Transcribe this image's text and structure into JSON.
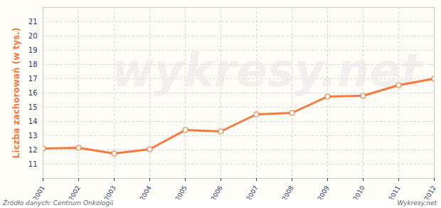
{
  "chart_data": {
    "type": "line",
    "y_label": "Liczba zachorowań (w tys.)",
    "source": "Źródło danych: Centrum Onkologii",
    "credit": "Wykresy.net",
    "watermark": "wykresy.net",
    "x": [
      2001,
      2002,
      2003,
      2004,
      2005,
      2006,
      2007,
      2008,
      2009,
      2010,
      2011,
      2012
    ],
    "values": [
      12.1,
      12.15,
      11.75,
      12.05,
      13.4,
      13.3,
      14.5,
      14.6,
      15.75,
      15.8,
      16.55,
      17.0
    ],
    "color": "#f47b3f",
    "marker": "circle",
    "xlim": [
      2001,
      2012
    ],
    "xticks": [
      2001,
      2002,
      2003,
      2004,
      2005,
      2006,
      2007,
      2008,
      2009,
      2010,
      2011,
      2012
    ],
    "ylim": [
      10,
      22
    ],
    "yticks": [
      11,
      12,
      13,
      14,
      15,
      16,
      17,
      18,
      19,
      20,
      21
    ],
    "grid": true
  }
}
